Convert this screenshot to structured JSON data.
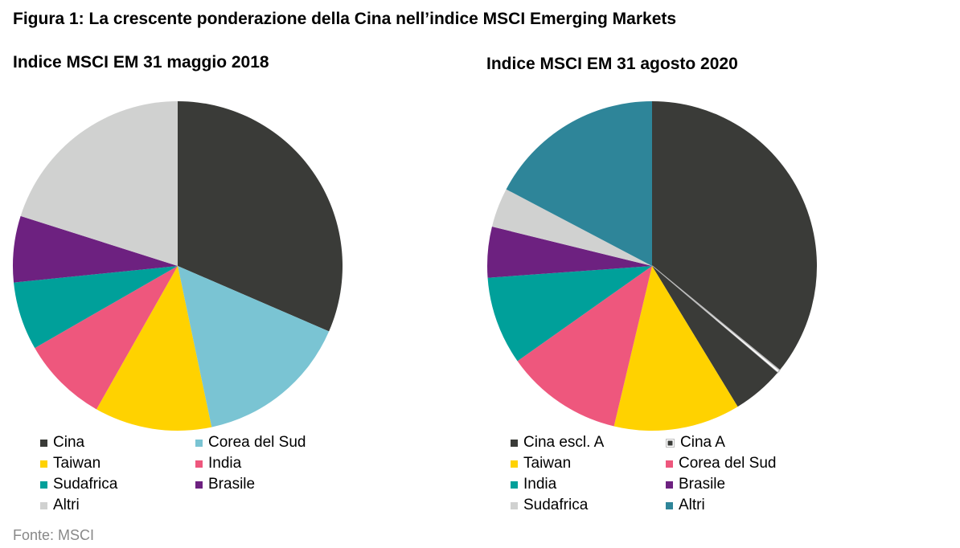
{
  "figure_title": "Figura 1: La crescente ponderazione della Cina nell’indice MSCI Emerging Markets",
  "source": "Fonte: MSCI",
  "chart_data": [
    {
      "type": "pie",
      "title": "Indice MSCI EM 31 maggio 2018",
      "series": [
        {
          "name": "Cina",
          "value": 31.5,
          "color": "#3a3b38"
        },
        {
          "name": "Corea del Sud",
          "value": 15.2,
          "color": "#7ac4d3"
        },
        {
          "name": "Taiwan",
          "value": 11.5,
          "color": "#ffd200"
        },
        {
          "name": "India",
          "value": 8.5,
          "color": "#ee577d"
        },
        {
          "name": "Sudafrica",
          "value": 6.7,
          "color": "#00a09a"
        },
        {
          "name": "Brasile",
          "value": 6.5,
          "color": "#6d2180"
        },
        {
          "name": "Altri",
          "value": 20.1,
          "color": "#d0d1d0"
        }
      ],
      "legend": [
        [
          "Cina",
          "Corea del Sud"
        ],
        [
          "Taiwan",
          "India"
        ],
        [
          "Sudafrica",
          "Brasile"
        ],
        [
          "Altri"
        ]
      ]
    },
    {
      "type": "pie",
      "title": "Indice MSCI EM 31 agosto 2020",
      "series": [
        {
          "name": "Cina escl. A",
          "value": 35.3,
          "color": "#3a3b38"
        },
        {
          "name": "Cina A",
          "value": 0.3,
          "color": "#ffffff"
        },
        {
          "name": "Cina escl. A",
          "value": 5.0,
          "color": "#3a3b38"
        },
        {
          "name": "Taiwan",
          "value": 12.2,
          "color": "#ffd200"
        },
        {
          "name": "Corea del Sud",
          "value": 11.3,
          "color": "#ee577d"
        },
        {
          "name": "India",
          "value": 8.5,
          "color": "#00a09a"
        },
        {
          "name": "Brasile",
          "value": 4.9,
          "color": "#6d2180"
        },
        {
          "name": "Sudafrica",
          "value": 3.8,
          "color": "#d0d1d0"
        },
        {
          "name": "Altri",
          "value": 17.0,
          "color": "#2e8599"
        }
      ],
      "legend": [
        [
          "Cina escl. A",
          "Cina A"
        ],
        [
          "Taiwan",
          "Corea del Sud"
        ],
        [
          "India",
          "Brasile"
        ],
        [
          "Sudafrica",
          "Altri"
        ]
      ]
    }
  ]
}
